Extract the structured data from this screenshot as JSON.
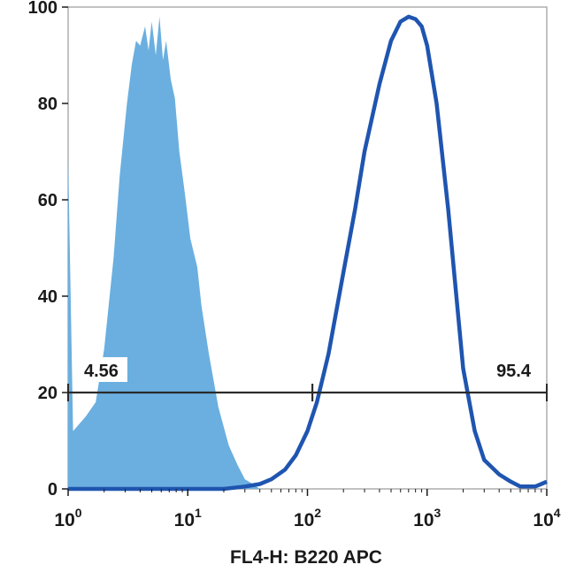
{
  "chart_data": {
    "type": "area",
    "title": "",
    "xlabel": "FL4-H: B220 APC",
    "ylabel": "",
    "x_scale": "log",
    "xlim": [
      1,
      10000
    ],
    "ylim": [
      0,
      100
    ],
    "x_ticks": [
      {
        "value": 1,
        "base": "10",
        "exp": "0"
      },
      {
        "value": 10,
        "base": "10",
        "exp": "1"
      },
      {
        "value": 100,
        "base": "10",
        "exp": "2"
      },
      {
        "value": 1000,
        "base": "10",
        "exp": "3"
      },
      {
        "value": 10000,
        "base": "10",
        "exp": "4"
      }
    ],
    "y_ticks": [
      0,
      20,
      40,
      60,
      80,
      100
    ],
    "grid": false,
    "series": [
      {
        "style": "filled",
        "color": "#6aafdf",
        "x": [
          1.0,
          1.1,
          1.4,
          1.7,
          2.0,
          2.4,
          2.7,
          3.1,
          3.4,
          3.7,
          4.0,
          4.4,
          4.7,
          5.0,
          5.4,
          5.8,
          6.2,
          6.6,
          7.2,
          7.8,
          8.5,
          9.5,
          10.5,
          12,
          13,
          15,
          18,
          22,
          26,
          30,
          35,
          40
        ],
        "y": [
          69,
          12,
          15,
          18,
          29,
          48,
          65,
          80,
          88,
          93,
          92,
          96,
          91,
          97,
          90,
          98,
          89,
          93,
          85,
          81,
          70,
          61,
          52,
          46,
          38,
          28,
          17,
          9,
          5,
          2,
          1,
          0
        ]
      },
      {
        "style": "line",
        "color": "#1f55b0",
        "x": [
          1,
          10,
          20,
          30,
          40,
          50,
          65,
          80,
          100,
          120,
          150,
          200,
          250,
          300,
          400,
          500,
          600,
          700,
          800,
          900,
          1000,
          1200,
          1500,
          2000,
          2500,
          3000,
          4000,
          5000,
          6000,
          8000,
          9000,
          10000
        ],
        "y": [
          0,
          0,
          0,
          0.5,
          1,
          2,
          4,
          7,
          12,
          18,
          28,
          45,
          58,
          70,
          84,
          93,
          97,
          98,
          97.5,
          96,
          92,
          80,
          58,
          25,
          12,
          6,
          3,
          1.5,
          0.5,
          0.5,
          1,
          1.5
        ]
      }
    ],
    "gates": [
      {
        "label": "4.56",
        "from": 1,
        "to": 110,
        "y": 20
      },
      {
        "label": "95.4",
        "from": 110,
        "to": 10000,
        "y": 20
      }
    ]
  }
}
